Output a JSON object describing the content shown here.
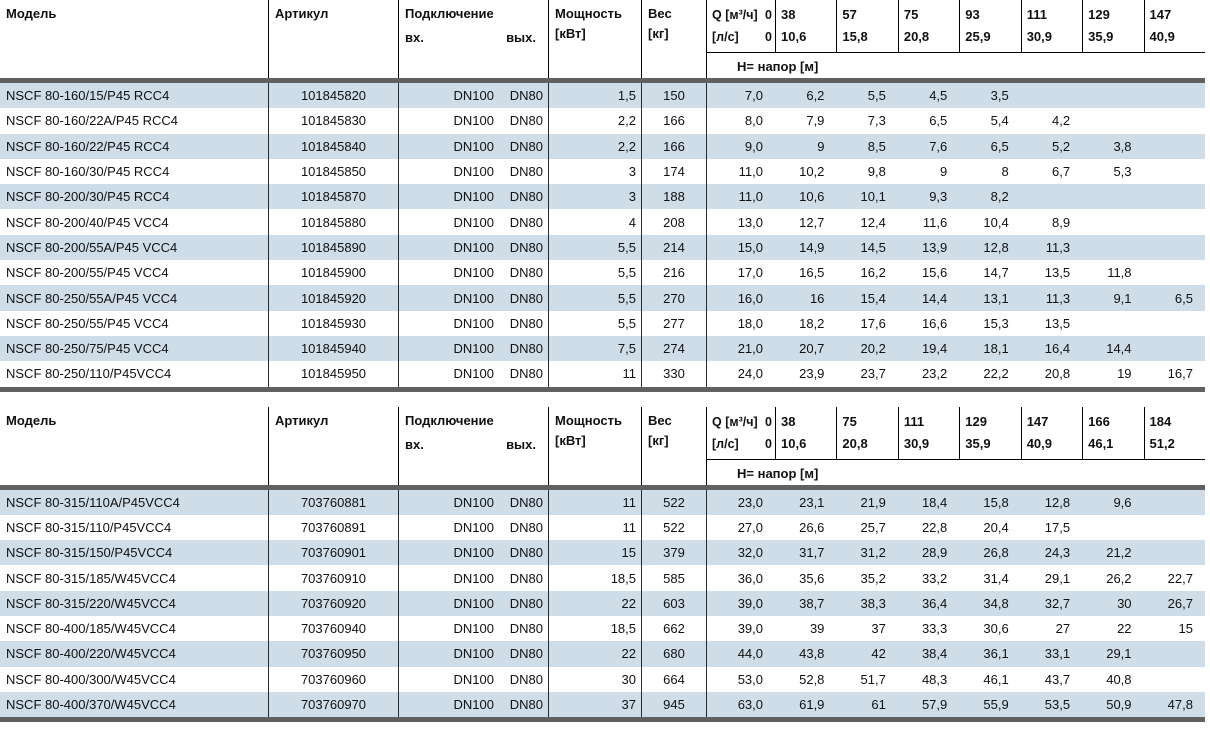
{
  "page": {
    "row_alt_color": "#cfdde9",
    "band_color": "#616161",
    "background": "#ffffff"
  },
  "tables": [
    {
      "headers": {
        "model": "Модель",
        "article": "Артикул",
        "connection": "Подключение",
        "inlet": "вх.",
        "outlet": "вых.",
        "power_line1": "Мощность",
        "power_line2": "[кВт]",
        "weight_line1": "Вес",
        "weight_line2": "[кг]",
        "q_label": "Q [м³/ч]",
        "q_zero": "0",
        "ls_label": "[л/с]",
        "ls_zero": "0",
        "head_row_label": "Н= напор [м]",
        "q_values": [
          "38",
          "57",
          "75",
          "93",
          "111",
          "129",
          "147"
        ],
        "ls_values": [
          "10,6",
          "15,8",
          "20,8",
          "25,9",
          "30,9",
          "35,9",
          "40,9"
        ]
      },
      "rows": [
        {
          "model": "NSCF 80-160/15/P45 RCC4",
          "article": "101845820",
          "inlet": "DN100",
          "outlet": "DN80",
          "power": "1,5",
          "weight": "150",
          "h": [
            "7,0",
            "6,2",
            "5,5",
            "4,5",
            "3,5",
            "",
            "",
            ""
          ]
        },
        {
          "model": "NSCF 80-160/22A/P45 RCC4",
          "article": "101845830",
          "inlet": "DN100",
          "outlet": "DN80",
          "power": "2,2",
          "weight": "166",
          "h": [
            "8,0",
            "7,9",
            "7,3",
            "6,5",
            "5,4",
            "4,2",
            "",
            ""
          ]
        },
        {
          "model": "NSCF 80-160/22/P45 RCC4",
          "article": "101845840",
          "inlet": "DN100",
          "outlet": "DN80",
          "power": "2,2",
          "weight": "166",
          "h": [
            "9,0",
            "9",
            "8,5",
            "7,6",
            "6,5",
            "5,2",
            "3,8",
            ""
          ]
        },
        {
          "model": "NSCF 80-160/30/P45 RCC4",
          "article": "101845850",
          "inlet": "DN100",
          "outlet": "DN80",
          "power": "3",
          "weight": "174",
          "h": [
            "11,0",
            "10,2",
            "9,8",
            "9",
            "8",
            "6,7",
            "5,3",
            ""
          ]
        },
        {
          "model": "NSCF 80-200/30/P45 RCC4",
          "article": "101845870",
          "inlet": "DN100",
          "outlet": "DN80",
          "power": "3",
          "weight": "188",
          "h": [
            "11,0",
            "10,6",
            "10,1",
            "9,3",
            "8,2",
            "",
            "",
            ""
          ]
        },
        {
          "model": "NSCF 80-200/40/P45 VCC4",
          "article": "101845880",
          "inlet": "DN100",
          "outlet": "DN80",
          "power": "4",
          "weight": "208",
          "h": [
            "13,0",
            "12,7",
            "12,4",
            "11,6",
            "10,4",
            "8,9",
            "",
            ""
          ]
        },
        {
          "model": "NSCF 80-200/55A/P45 VCC4",
          "article": "101845890",
          "inlet": "DN100",
          "outlet": "DN80",
          "power": "5,5",
          "weight": "214",
          "h": [
            "15,0",
            "14,9",
            "14,5",
            "13,9",
            "12,8",
            "11,3",
            "",
            ""
          ]
        },
        {
          "model": "NSCF 80-200/55/P45 VCC4",
          "article": "101845900",
          "inlet": "DN100",
          "outlet": "DN80",
          "power": "5,5",
          "weight": "216",
          "h": [
            "17,0",
            "16,5",
            "16,2",
            "15,6",
            "14,7",
            "13,5",
            "11,8",
            ""
          ]
        },
        {
          "model": "NSCF 80-250/55A/P45 VCC4",
          "article": "101845920",
          "inlet": "DN100",
          "outlet": "DN80",
          "power": "5,5",
          "weight": "270",
          "h": [
            "16,0",
            "16",
            "15,4",
            "14,4",
            "13,1",
            "11,3",
            "9,1",
            "6,5"
          ]
        },
        {
          "model": "NSCF 80-250/55/P45 VCC4",
          "article": "101845930",
          "inlet": "DN100",
          "outlet": "DN80",
          "power": "5,5",
          "weight": "277",
          "h": [
            "18,0",
            "18,2",
            "17,6",
            "16,6",
            "15,3",
            "13,5",
            "",
            ""
          ]
        },
        {
          "model": "NSCF 80-250/75/P45 VCC4",
          "article": "101845940",
          "inlet": "DN100",
          "outlet": "DN80",
          "power": "7,5",
          "weight": "274",
          "h": [
            "21,0",
            "20,7",
            "20,2",
            "19,4",
            "18,1",
            "16,4",
            "14,4",
            ""
          ]
        },
        {
          "model": "NSCF 80-250/110/P45VCC4",
          "article": "101845950",
          "inlet": "DN100",
          "outlet": "DN80",
          "power": "11",
          "weight": "330",
          "h": [
            "24,0",
            "23,9",
            "23,7",
            "23,2",
            "22,2",
            "20,8",
            "19",
            "16,7"
          ]
        }
      ]
    },
    {
      "headers": {
        "model": "Модель",
        "article": "Артикул",
        "connection": "Подключение",
        "inlet": "вх.",
        "outlet": "вых.",
        "power_line1": "Мощность",
        "power_line2": "[кВт]",
        "weight_line1": "Вес",
        "weight_line2": "[кг]",
        "q_label": "Q [м³/ч]",
        "q_zero": "0",
        "ls_label": "[л/с]",
        "ls_zero": "0",
        "head_row_label": "Н= напор [м]",
        "q_values": [
          "38",
          "75",
          "111",
          "129",
          "147",
          "166",
          "184"
        ],
        "ls_values": [
          "10,6",
          "20,8",
          "30,9",
          "35,9",
          "40,9",
          "46,1",
          "51,2"
        ]
      },
      "rows": [
        {
          "model": "NSCF 80-315/110A/P45VCC4",
          "article": "703760881",
          "inlet": "DN100",
          "outlet": "DN80",
          "power": "11",
          "weight": "522",
          "h": [
            "23,0",
            "23,1",
            "21,9",
            "18,4",
            "15,8",
            "12,8",
            "9,6",
            ""
          ]
        },
        {
          "model": "NSCF 80-315/110/P45VCC4",
          "article": "703760891",
          "inlet": "DN100",
          "outlet": "DN80",
          "power": "11",
          "weight": "522",
          "h": [
            "27,0",
            "26,6",
            "25,7",
            "22,8",
            "20,4",
            "17,5",
            "",
            ""
          ]
        },
        {
          "model": "NSCF 80-315/150/P45VCC4",
          "article": "703760901",
          "inlet": "DN100",
          "outlet": "DN80",
          "power": "15",
          "weight": "379",
          "h": [
            "32,0",
            "31,7",
            "31,2",
            "28,9",
            "26,8",
            "24,3",
            "21,2",
            ""
          ]
        },
        {
          "model": "NSCF 80-315/185/W45VCC4",
          "article": "703760910",
          "inlet": "DN100",
          "outlet": "DN80",
          "power": "18,5",
          "weight": "585",
          "h": [
            "36,0",
            "35,6",
            "35,2",
            "33,2",
            "31,4",
            "29,1",
            "26,2",
            "22,7"
          ]
        },
        {
          "model": "NSCF 80-315/220/W45VCC4",
          "article": "703760920",
          "inlet": "DN100",
          "outlet": "DN80",
          "power": "22",
          "weight": "603",
          "h": [
            "39,0",
            "38,7",
            "38,3",
            "36,4",
            "34,8",
            "32,7",
            "30",
            "26,7"
          ]
        },
        {
          "model": "NSCF 80-400/185/W45VCC4",
          "article": "703760940",
          "inlet": "DN100",
          "outlet": "DN80",
          "power": "18,5",
          "weight": "662",
          "h": [
            "39,0",
            "39",
            "37",
            "33,3",
            "30,6",
            "27",
            "22",
            "15"
          ]
        },
        {
          "model": "NSCF 80-400/220/W45VCC4",
          "article": "703760950",
          "inlet": "DN100",
          "outlet": "DN80",
          "power": "22",
          "weight": "680",
          "h": [
            "44,0",
            "43,8",
            "42",
            "38,4",
            "36,1",
            "33,1",
            "29,1",
            ""
          ]
        },
        {
          "model": "NSCF 80-400/300/W45VCC4",
          "article": "703760960",
          "inlet": "DN100",
          "outlet": "DN80",
          "power": "30",
          "weight": "664",
          "h": [
            "53,0",
            "52,8",
            "51,7",
            "48,3",
            "46,1",
            "43,7",
            "40,8",
            ""
          ]
        },
        {
          "model": "NSCF 80-400/370/W45VCC4",
          "article": "703760970",
          "inlet": "DN100",
          "outlet": "DN80",
          "power": "37",
          "weight": "945",
          "h": [
            "63,0",
            "61,9",
            "61",
            "57,9",
            "55,9",
            "53,5",
            "50,9",
            "47,8"
          ]
        }
      ]
    }
  ]
}
